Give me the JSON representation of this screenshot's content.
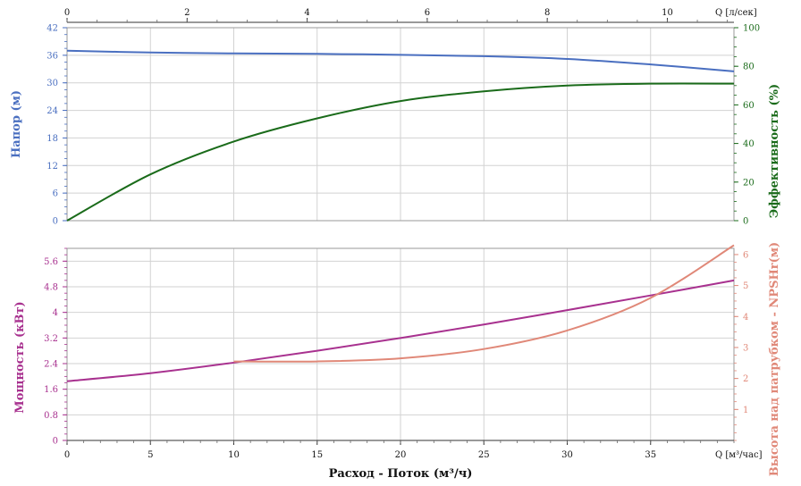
{
  "chart_data": {
    "type": "line",
    "x_bottom": {
      "label": "Расход - Поток (м³/ч)",
      "unit_label": "Q [м³/час]",
      "range": [
        0,
        40
      ],
      "ticks": [
        "0",
        "5",
        "10",
        "15",
        "20",
        "25",
        "30",
        "35"
      ]
    },
    "x_top": {
      "unit_label": "Q [л/сек]",
      "range": [
        0,
        11.11
      ],
      "ticks": [
        "0",
        "2",
        "4",
        "6",
        "8",
        "10"
      ]
    },
    "upper_panel": {
      "left_axis": {
        "label": "Напор (м)",
        "range": [
          0,
          42
        ],
        "ticks": [
          "0",
          "6",
          "12",
          "18",
          "24",
          "30",
          "36",
          "42"
        ],
        "color": "#4a6fc0"
      },
      "right_axis": {
        "label": "Эффективность (%)",
        "range": [
          0,
          100
        ],
        "ticks": [
          "0",
          "20",
          "40",
          "60",
          "80",
          "100"
        ],
        "color": "#1a6b1a"
      }
    },
    "lower_panel": {
      "left_axis": {
        "label": "Мощность (кВт)",
        "range": [
          0,
          6
        ],
        "ticks": [
          "0",
          "0.8",
          "1.6",
          "2.4",
          "3.2",
          "4",
          "4.8",
          "5.6"
        ],
        "color": "#a8318f"
      },
      "right_axis": {
        "label": "Высота над патрубком - NPSHr(м)",
        "range": [
          0,
          6.2
        ],
        "ticks": [
          "1",
          "2",
          "3",
          "4",
          "5",
          "6"
        ],
        "color": "#e08878"
      }
    },
    "series": [
      {
        "panel": "upper",
        "axis": "left",
        "color": "#4a6fc0",
        "x": [
          0,
          5,
          10,
          15,
          20,
          25,
          30,
          35,
          40
        ],
        "values": [
          37.0,
          36.6,
          36.4,
          36.3,
          36.1,
          35.8,
          35.2,
          34.0,
          32.5
        ]
      },
      {
        "panel": "upper",
        "axis": "right",
        "color": "#1a6b1a",
        "x": [
          0,
          5,
          10,
          15,
          20,
          25,
          30,
          35,
          40
        ],
        "values": [
          0,
          24,
          41,
          53,
          62,
          67,
          70,
          71,
          71
        ]
      },
      {
        "panel": "lower",
        "axis": "left",
        "color": "#a8318f",
        "x": [
          0,
          5,
          10,
          15,
          20,
          25,
          30,
          35,
          40
        ],
        "values": [
          1.85,
          2.1,
          2.43,
          2.8,
          3.2,
          3.62,
          4.07,
          4.53,
          5.0
        ]
      },
      {
        "panel": "lower",
        "axis": "right",
        "color": "#e08878",
        "x": [
          10,
          15,
          20,
          25,
          30,
          35,
          40
        ],
        "values": [
          2.55,
          2.55,
          2.65,
          2.95,
          3.55,
          4.6,
          6.3
        ]
      }
    ],
    "grid": true
  }
}
